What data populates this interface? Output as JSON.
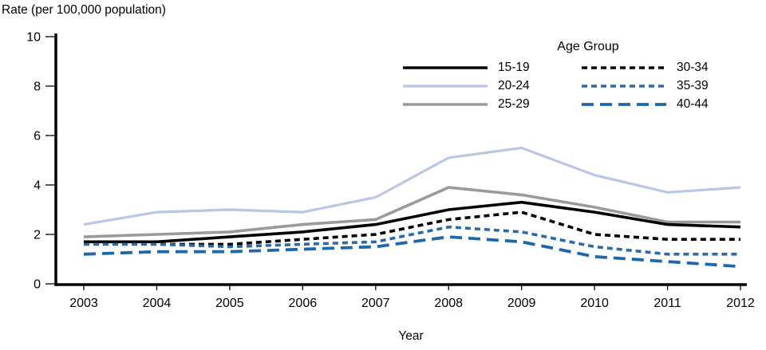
{
  "chart_data": {
    "type": "line",
    "x": [
      2003,
      2004,
      2005,
      2006,
      2007,
      2008,
      2009,
      2010,
      2011,
      2012
    ],
    "xlabel": "Year",
    "ylabel": "Rate (per 100,000 population)",
    "ylim": [
      0,
      10
    ],
    "yticks": [
      0,
      2,
      4,
      6,
      8,
      10
    ],
    "grid": false,
    "legend_title": "Age Group",
    "legend_position": "top-center-inside",
    "legend_columns": 2,
    "axis_color": "#000000",
    "series": [
      {
        "name": "15-19",
        "color": "#000000",
        "dash": "solid",
        "width": 3.6,
        "values": [
          1.7,
          1.7,
          1.9,
          2.1,
          2.4,
          3.0,
          3.3,
          2.9,
          2.4,
          2.3
        ]
      },
      {
        "name": "20-24",
        "color": "#b9c6e4",
        "dash": "solid",
        "width": 3.2,
        "values": [
          2.4,
          2.9,
          3.0,
          2.9,
          3.5,
          5.1,
          5.5,
          4.4,
          3.7,
          3.9
        ]
      },
      {
        "name": "25-29",
        "color": "#9a9a9a",
        "dash": "solid",
        "width": 3.6,
        "values": [
          1.9,
          2.0,
          2.1,
          2.4,
          2.6,
          3.9,
          3.6,
          3.1,
          2.5,
          2.5
        ]
      },
      {
        "name": "30-34",
        "color": "#000000",
        "dash": "short",
        "width": 3.6,
        "values": [
          1.7,
          1.6,
          1.6,
          1.8,
          2.0,
          2.6,
          2.9,
          2.0,
          1.8,
          1.8
        ]
      },
      {
        "name": "35-39",
        "color": "#2a6aa8",
        "dash": "short",
        "width": 3.6,
        "values": [
          1.6,
          1.6,
          1.5,
          1.6,
          1.7,
          2.3,
          2.1,
          1.5,
          1.2,
          1.2
        ]
      },
      {
        "name": "40-44",
        "color": "#1e67a8",
        "dash": "long",
        "width": 3.8,
        "values": [
          1.2,
          1.3,
          1.3,
          1.4,
          1.5,
          1.9,
          1.7,
          1.1,
          0.9,
          0.7
        ]
      }
    ]
  }
}
